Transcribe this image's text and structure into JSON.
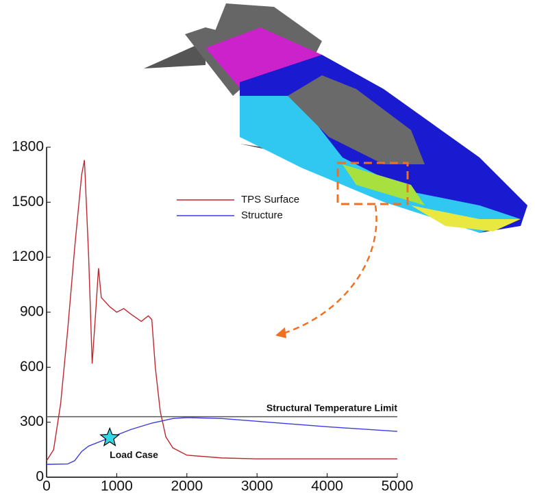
{
  "chart_data": {
    "type": "line",
    "series": [
      {
        "name": "TPS Surface",
        "color": "#c0262d",
        "x": [
          0,
          100,
          200,
          300,
          400,
          500,
          540,
          600,
          650,
          700,
          740,
          780,
          900,
          1000,
          1100,
          1200,
          1350,
          1450,
          1500,
          1550,
          1620,
          1700,
          1800,
          2000,
          2500,
          3000,
          4000,
          5000
        ],
        "values": [
          90,
          150,
          400,
          800,
          1250,
          1650,
          1730,
          1200,
          620,
          900,
          1140,
          980,
          930,
          900,
          920,
          890,
          850,
          880,
          860,
          600,
          360,
          220,
          160,
          120,
          105,
          100,
          100,
          100
        ]
      },
      {
        "name": "Structure",
        "color": "#3a3ae0",
        "x": [
          0,
          300,
          400,
          500,
          600,
          800,
          1000,
          1200,
          1500,
          1800,
          2000,
          2500,
          3000,
          4000,
          5000
        ],
        "values": [
          70,
          72,
          90,
          140,
          170,
          200,
          230,
          260,
          295,
          320,
          325,
          320,
          305,
          275,
          250
        ]
      }
    ],
    "limit": {
      "value": 330,
      "label": "Structural Temperature Limit"
    },
    "load_case": {
      "x": 900,
      "y": 215,
      "label": "Load Case"
    },
    "xlim": [
      0,
      5000
    ],
    "xticks": [
      0,
      1000,
      2000,
      3000,
      4000,
      5000
    ],
    "ylim": [
      0,
      1800
    ],
    "yticks": [
      0,
      300,
      600,
      900,
      1200,
      1500,
      1800
    ],
    "grid": false
  }
}
